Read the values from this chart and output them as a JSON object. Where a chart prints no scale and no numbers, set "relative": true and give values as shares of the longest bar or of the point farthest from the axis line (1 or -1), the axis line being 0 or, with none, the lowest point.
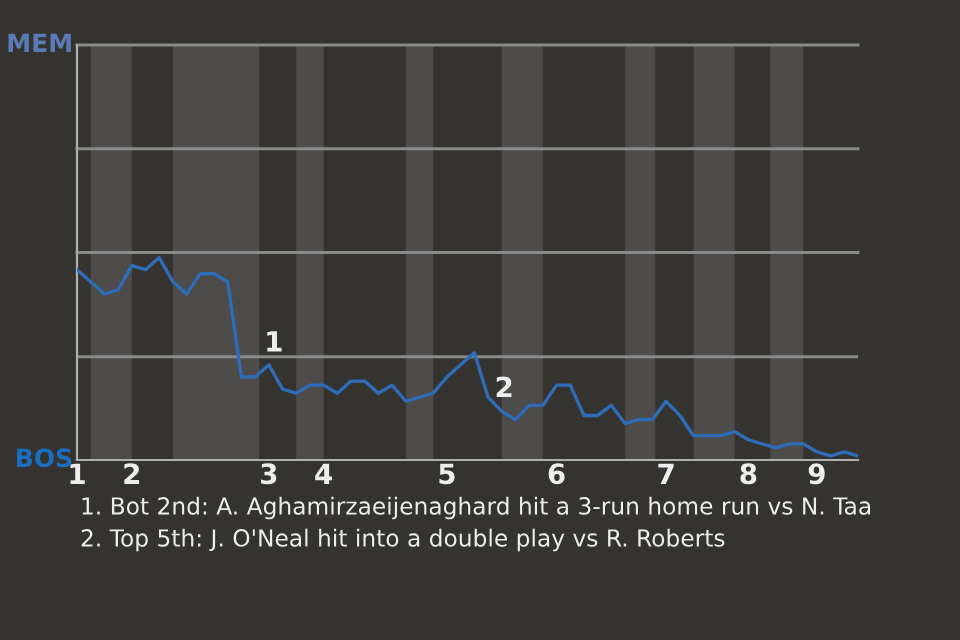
{
  "chart_data": {
    "type": "line",
    "categories": [
      "1",
      null,
      null,
      null,
      "2",
      null,
      null,
      null,
      null,
      null,
      null,
      null,
      null,
      null,
      "3",
      null,
      null,
      null,
      "4",
      null,
      null,
      null,
      null,
      null,
      null,
      null,
      null,
      "5",
      null,
      null,
      null,
      null,
      null,
      null,
      null,
      "6",
      null,
      null,
      null,
      null,
      null,
      null,
      null,
      "7",
      null,
      null,
      null,
      null,
      null,
      "8",
      null,
      null,
      null,
      null,
      "9",
      null,
      null,
      null
    ],
    "relative": true,
    "series": [
      {
        "color": "#2f6db8",
        "values": [
          0.94,
          0.88,
          0.82,
          0.84,
          0.96,
          0.94,
          1,
          0.88,
          0.82,
          0.92,
          0.92,
          0.88,
          0.41,
          0.41,
          0.47,
          0.35,
          0.33,
          0.37,
          0.37,
          0.33,
          0.39,
          0.39,
          0.33,
          0.37,
          0.29,
          0.31,
          0.33,
          0.41,
          0.47,
          0.53,
          0.31,
          0.24,
          0.2,
          0.27,
          0.27,
          0.37,
          0.37,
          0.22,
          0.22,
          0.27,
          0.18,
          0.2,
          0.2,
          0.29,
          0.22,
          0.12,
          0.12,
          0.12,
          0.14,
          0.1,
          0.08,
          0.06,
          0.08,
          0.08,
          0.04,
          0.02,
          0.04,
          0.02
        ]
      }
    ],
    "ref_lines": [
      {
        "axis": "y",
        "value": 0.51,
        "color": "#8a8a8a",
        "line_style": "solid"
      }
    ],
    "marker": "none",
    "line_style": "solid",
    "annotations": [
      "1",
      "2",
      "MEM",
      "BOS",
      "1. Bot 2nd: A. Aghamirzaeijenaghard hit a 3-run home run vs N. Taa",
      "2. Top 5th: J. O'Neal hit into a double play vs R. Roberts"
    ]
  }
}
